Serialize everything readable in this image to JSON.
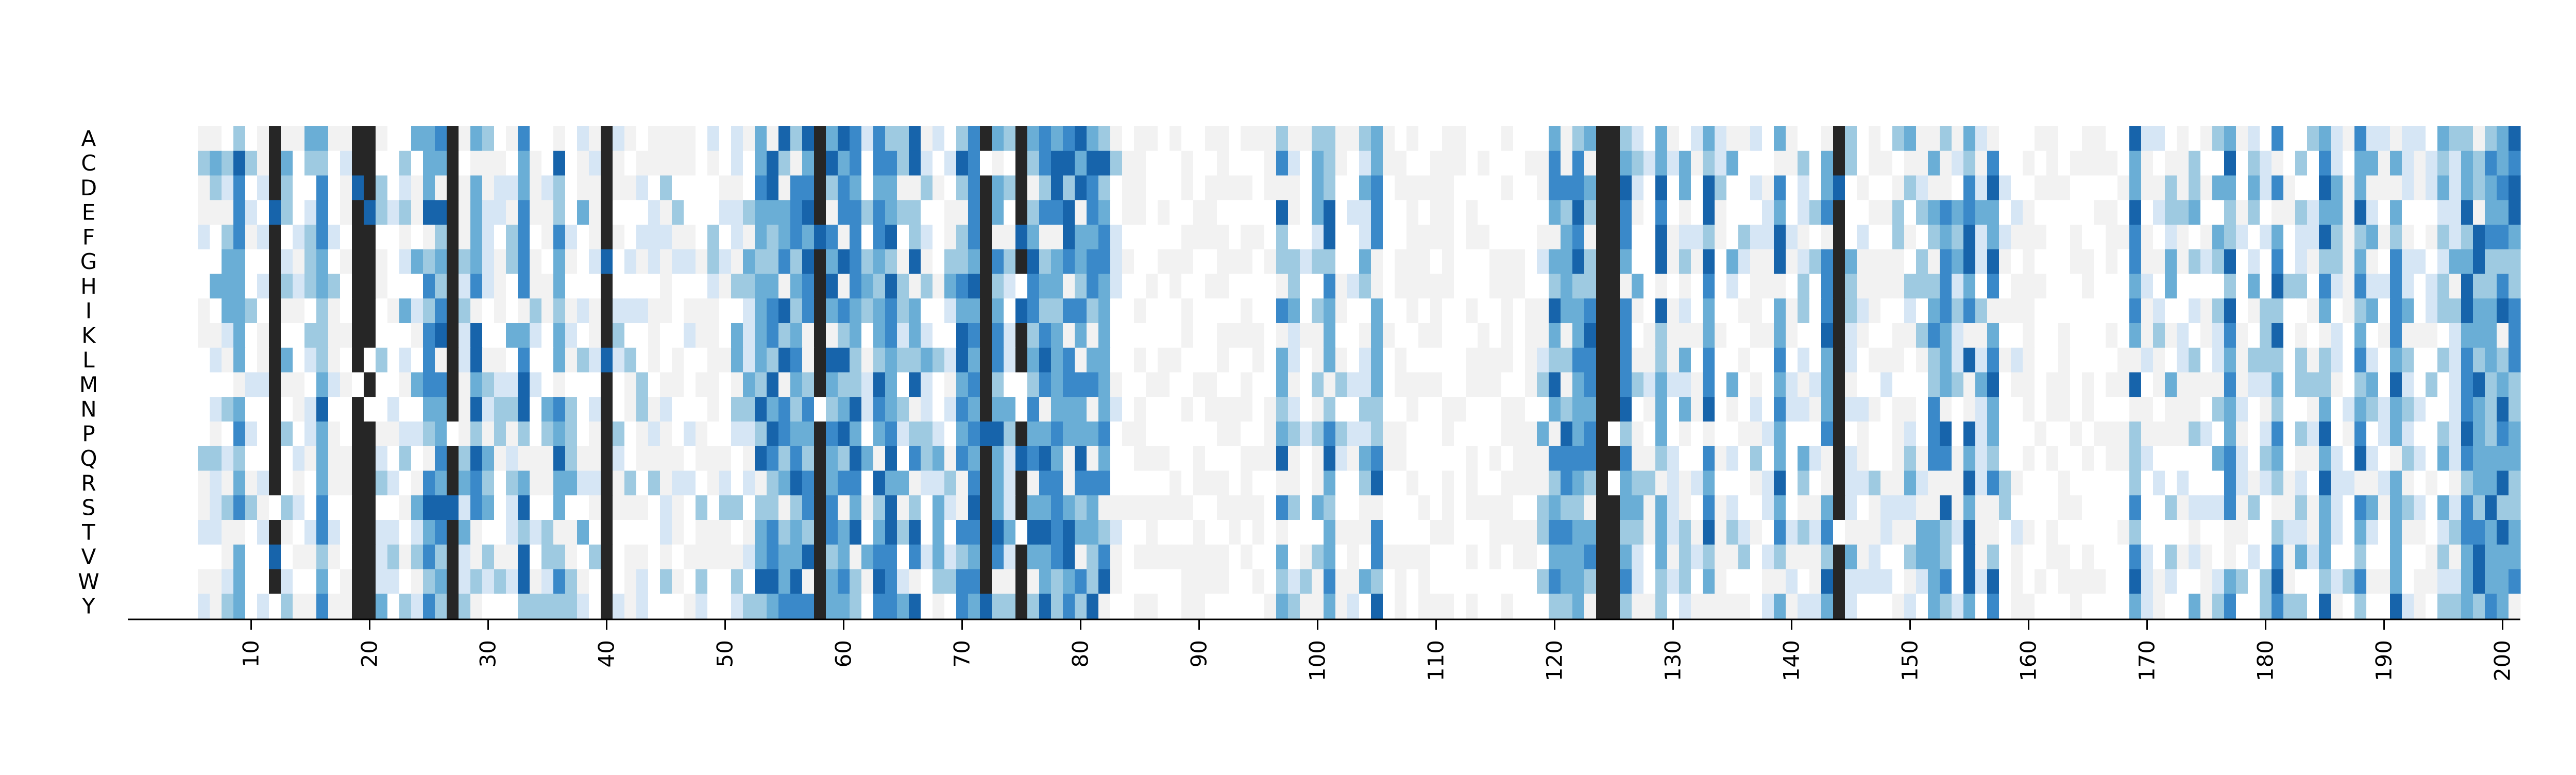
{
  "chart_data": {
    "type": "heatmap",
    "title": "",
    "xlabel": "",
    "ylabel": "",
    "y_categories": [
      "A",
      "C",
      "D",
      "E",
      "F",
      "G",
      "H",
      "I",
      "K",
      "L",
      "M",
      "N",
      "P",
      "Q",
      "R",
      "S",
      "T",
      "V",
      "W",
      "Y"
    ],
    "x_range": [
      6,
      201
    ],
    "x_ticks": [
      10,
      20,
      30,
      40,
      50,
      60,
      70,
      80,
      90,
      100,
      110,
      120,
      130,
      140,
      150,
      160,
      170,
      180,
      190,
      200
    ],
    "empty_columns": [
      [
        84,
        96
      ],
      [
        106,
        118
      ],
      [
        160,
        168
      ]
    ],
    "black_columns": [
      12,
      19,
      20,
      27,
      40,
      58,
      72,
      75,
      124,
      125,
      144
    ],
    "colormap": [
      "#ffffff",
      "#f2f2f2",
      "#d6e6f5",
      "#9ecae1",
      "#6aaed6",
      "#3a89c9",
      "#1764ab"
    ],
    "black_color": "#262626",
    "grid": false,
    "legend": "none"
  }
}
